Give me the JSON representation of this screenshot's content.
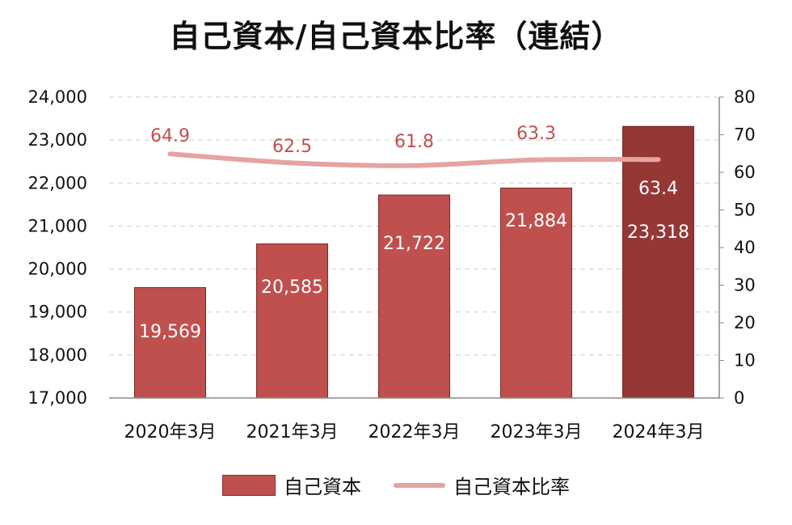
{
  "chart_data": {
    "type": "bar",
    "title": "自己資本/自己資本比率（連結）",
    "categories": [
      "2020年3月",
      "2021年3月",
      "2022年3月",
      "2023年3月",
      "2024年3月"
    ],
    "series": [
      {
        "name": "自己資本",
        "type": "bar",
        "axis": "left",
        "values": [
          19569,
          20585,
          21722,
          21884,
          23318
        ],
        "labels": [
          "19,569",
          "20,585",
          "21,722",
          "21,884",
          "23,318"
        ]
      },
      {
        "name": "自己資本比率",
        "type": "line",
        "axis": "right",
        "values": [
          64.9,
          62.5,
          61.8,
          63.3,
          63.4
        ],
        "labels": [
          "64.9",
          "62.5",
          "61.8",
          "63.3",
          "63.4"
        ]
      }
    ],
    "y_left": {
      "min": 17000,
      "max": 24000,
      "step": 1000,
      "ticks": [
        "17,000",
        "18,000",
        "19,000",
        "20,000",
        "21,000",
        "22,000",
        "23,000",
        "24,000"
      ]
    },
    "y_right": {
      "min": 0,
      "max": 80,
      "step": 10,
      "ticks": [
        "0",
        "10",
        "20",
        "30",
        "40",
        "50",
        "60",
        "70",
        "80"
      ]
    },
    "grid": true,
    "legend_position": "bottom",
    "colors": {
      "bar": "#c0504d",
      "bar_highlight": "#953735",
      "line": "#e5a3a3",
      "line_label": "#c0504d",
      "bar_label": "#ffffff"
    }
  }
}
